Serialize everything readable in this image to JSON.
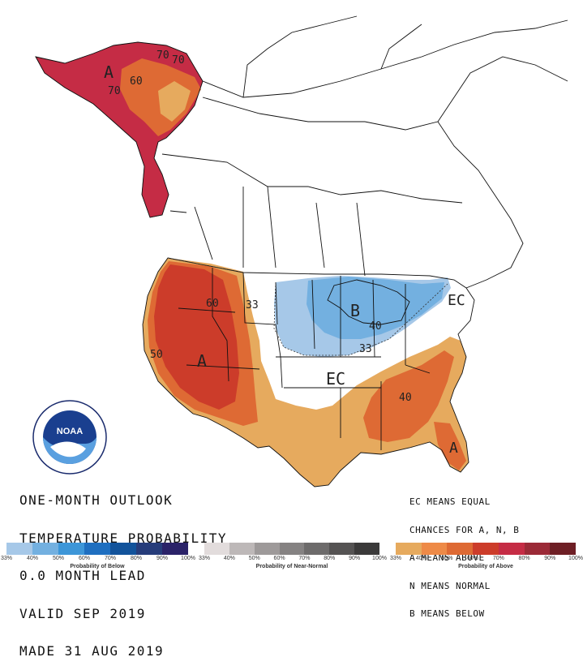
{
  "title_lines": [
    "ONE-MONTH OUTLOOK",
    "TEMPERATURE PROBABILITY",
    "0.0 MONTH LEAD",
    "VALID SEP 2019",
    "MADE 31 AUG 2019"
  ],
  "legend_lines": [
    "EC MEANS EQUAL",
    "CHANCES FOR A, N, B",
    "A MEANS ABOVE",
    "N MEANS NORMAL",
    "B MEANS BELOW"
  ],
  "map_labels": {
    "alaska_a": "A",
    "alaska_70a": "70",
    "alaska_70b": "70",
    "alaska_70c": "70",
    "alaska_60": "60",
    "west_60": "60",
    "west_33": "33",
    "west_50": "50",
    "west_a": "A",
    "great_lakes_b": "B",
    "great_lakes_40": "40",
    "great_lakes_33": "33",
    "central_ec": "EC",
    "northeast_ec": "EC",
    "southeast_40": "40",
    "florida_a": "A"
  },
  "logo_text": "NOAA",
  "scales": {
    "below": {
      "title": "Probability of Below",
      "ticks": [
        "33%",
        "40%",
        "50%",
        "60%",
        "70%",
        "80%",
        "90%",
        "100%"
      ],
      "colors": [
        "#a6c8e8",
        "#73b0e0",
        "#3d96d8",
        "#1f6fc0",
        "#12539b",
        "#263c7a",
        "#2a2268"
      ]
    },
    "normal": {
      "title": "Probability of Near-Normal",
      "ticks": [
        "33%",
        "40%",
        "50%",
        "60%",
        "70%",
        "80%",
        "90%",
        "100%"
      ],
      "colors": [
        "#e2dcdc",
        "#bdb8b8",
        "#9e9a9a",
        "#858282",
        "#6d6b6b",
        "#555353",
        "#3b3a3a"
      ]
    },
    "above": {
      "title": "Probability of Above",
      "ticks": [
        "33%",
        "40%",
        "50%",
        "60%",
        "70%",
        "80%",
        "90%",
        "100%"
      ],
      "colors": [
        "#e6aa5e",
        "#ee8a47",
        "#de6a34",
        "#cc3c2a",
        "#c52c45",
        "#9b2a37",
        "#6e1f25"
      ]
    }
  },
  "colors": {
    "above_33": "#e6aa5e",
    "above_40": "#e98c4a",
    "above_50": "#de6a34",
    "above_60": "#cc3c2a",
    "above_70": "#c52c45",
    "below_33": "#a6c8e8",
    "below_40": "#73b0e0"
  }
}
